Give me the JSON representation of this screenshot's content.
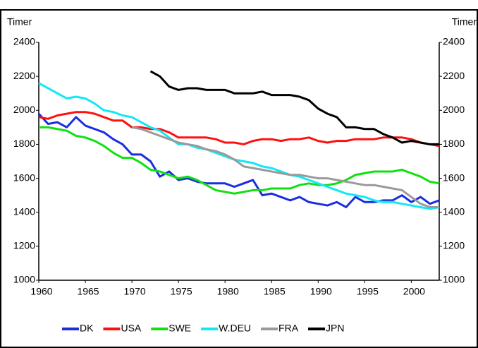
{
  "chart_data": {
    "type": "line",
    "ylabel": "Timer",
    "y2label": "Timer",
    "x": [
      1960,
      1961,
      1962,
      1963,
      1964,
      1965,
      1966,
      1967,
      1968,
      1969,
      1970,
      1971,
      1972,
      1973,
      1974,
      1975,
      1976,
      1977,
      1978,
      1979,
      1980,
      1981,
      1982,
      1983,
      1984,
      1985,
      1986,
      1987,
      1988,
      1989,
      1990,
      1991,
      1992,
      1993,
      1994,
      1995,
      1996,
      1997,
      1998,
      1999,
      2000,
      2001,
      2002,
      2003
    ],
    "xlim": [
      1960,
      2003
    ],
    "xticks": [
      1960,
      1965,
      1970,
      1975,
      1980,
      1985,
      1990,
      1995,
      2000
    ],
    "ylim": [
      1000,
      2400
    ],
    "yticks": [
      1000,
      1200,
      1400,
      1600,
      1800,
      2000,
      2200,
      2400
    ],
    "y2lim": [
      1000,
      2400
    ],
    "y2ticks": [
      1000,
      1200,
      1400,
      1600,
      1800,
      2000,
      2200,
      2400
    ],
    "grid": false,
    "legend": "bottom",
    "series": [
      {
        "name": "DK",
        "color": "#1a2ee0",
        "values": [
          1980,
          1920,
          1930,
          1900,
          1960,
          1910,
          1890,
          1870,
          1830,
          1800,
          1740,
          1740,
          1700,
          1610,
          1640,
          1590,
          1600,
          1580,
          1570,
          1570,
          1570,
          1550,
          1570,
          1590,
          1500,
          1510,
          1490,
          1470,
          1490,
          1460,
          1450,
          1440,
          1460,
          1430,
          1490,
          1460,
          1460,
          1470,
          1470,
          1500,
          1460,
          1490,
          1450,
          1470
        ]
      },
      {
        "name": "USA",
        "color": "#ff1010",
        "values": [
          1960,
          1950,
          1970,
          1980,
          1990,
          1990,
          1980,
          1960,
          1940,
          1940,
          1900,
          1900,
          1890,
          1890,
          1870,
          1840,
          1840,
          1840,
          1840,
          1830,
          1810,
          1810,
          1800,
          1820,
          1830,
          1830,
          1820,
          1830,
          1830,
          1840,
          1820,
          1810,
          1820,
          1820,
          1830,
          1830,
          1830,
          1840,
          1840,
          1840,
          1830,
          1810,
          1800,
          1790
        ]
      },
      {
        "name": "SWE",
        "color": "#10e010",
        "values": [
          1900,
          1900,
          1890,
          1880,
          1850,
          1840,
          1820,
          1790,
          1750,
          1720,
          1720,
          1690,
          1650,
          1640,
          1620,
          1600,
          1610,
          1590,
          1560,
          1530,
          1520,
          1510,
          1520,
          1530,
          1530,
          1540,
          1540,
          1540,
          1560,
          1570,
          1560,
          1560,
          1570,
          1590,
          1620,
          1630,
          1640,
          1640,
          1640,
          1650,
          1630,
          1610,
          1580,
          1570
        ]
      },
      {
        "name": "W.DEU",
        "color": "#10e8f8",
        "values": [
          2160,
          2130,
          2100,
          2070,
          2080,
          2070,
          2040,
          2000,
          1990,
          1970,
          1960,
          1930,
          1900,
          1880,
          1840,
          1800,
          1800,
          1780,
          1770,
          1750,
          1730,
          1710,
          1700,
          1690,
          1670,
          1660,
          1640,
          1620,
          1610,
          1590,
          1570,
          1550,
          1530,
          1510,
          1500,
          1490,
          1470,
          1460,
          1460,
          1450,
          1440,
          1430,
          1420,
          1430
        ]
      },
      {
        "name": "FRA",
        "color": "#9a9a9a",
        "values": [
          null,
          null,
          null,
          null,
          null,
          null,
          null,
          null,
          null,
          null,
          1900,
          1890,
          1870,
          1850,
          1830,
          1810,
          1800,
          1790,
          1770,
          1760,
          1740,
          1710,
          1670,
          1660,
          1650,
          1640,
          1630,
          1620,
          1620,
          1610,
          1600,
          1600,
          1590,
          1580,
          1570,
          1560,
          1560,
          1550,
          1540,
          1530,
          1490,
          1450,
          1430,
          1430
        ]
      },
      {
        "name": "JPN",
        "color": "#000000",
        "values": [
          null,
          null,
          null,
          null,
          null,
          null,
          null,
          null,
          null,
          null,
          null,
          null,
          2230,
          2200,
          2140,
          2120,
          2130,
          2130,
          2120,
          2120,
          2120,
          2100,
          2100,
          2100,
          2110,
          2090,
          2090,
          2090,
          2080,
          2060,
          2010,
          1980,
          1960,
          1900,
          1900,
          1890,
          1890,
          1860,
          1840,
          1810,
          1820,
          1810,
          1800,
          1800
        ]
      }
    ]
  }
}
